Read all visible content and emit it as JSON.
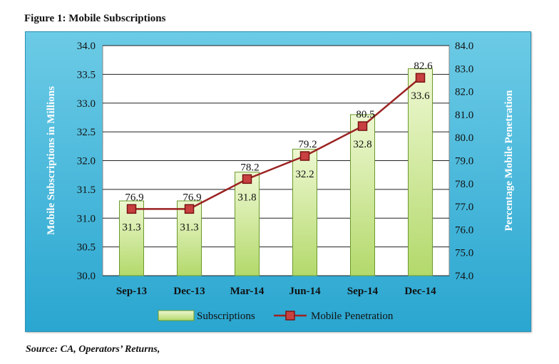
{
  "figure_title": "Figure 1: Mobile Subscriptions",
  "source_note": "Source: CA, Operators’ Returns,",
  "colors": {
    "panel": "#2aa6d0",
    "plot_bg": "#ffffff",
    "bar_fill_top": "#eef8d2",
    "bar_fill_bottom": "#b3d96b",
    "bar_stroke": "#6a9a2a",
    "line": "#9b2222",
    "marker_fill": "#c84040",
    "marker_stroke": "#7a1414",
    "gridline": "#222222"
  },
  "chart_data": {
    "type": "bar",
    "categories": [
      "Sep-13",
      "Dec-13",
      "Mar-14",
      "Jun-14",
      "Sep-14",
      "Dec-14"
    ],
    "ylabel": "Mobile Subscriptions in Millions",
    "y2label": "Percentage Mobile Penetration",
    "ylim": [
      30.0,
      34.0
    ],
    "y2lim": [
      74.0,
      84.0
    ],
    "yticks": [
      "30.0",
      "30.5",
      "31.0",
      "31.5",
      "32.0",
      "32.5",
      "33.0",
      "33.5",
      "34.0"
    ],
    "y2ticks": [
      "74.0",
      "75.0",
      "76.0",
      "77.0",
      "78.0",
      "79.0",
      "80.0",
      "81.0",
      "82.0",
      "83.0",
      "84.0"
    ],
    "grid": true,
    "legend_position": "bottom",
    "series": [
      {
        "name": "Subscriptions",
        "type": "bar",
        "axis": "left",
        "values": [
          31.3,
          31.3,
          31.8,
          32.2,
          32.8,
          33.6
        ],
        "labels": [
          "31.3",
          "31.3",
          "31.8",
          "32.2",
          "32.8",
          "33.6"
        ]
      },
      {
        "name": "Mobile Penetration",
        "type": "line",
        "axis": "right",
        "values": [
          76.9,
          76.9,
          78.2,
          79.2,
          80.5,
          82.6
        ],
        "labels": [
          "76.9",
          "76.9",
          "78.2",
          "79.2",
          "80.5",
          "82.6"
        ]
      }
    ]
  }
}
